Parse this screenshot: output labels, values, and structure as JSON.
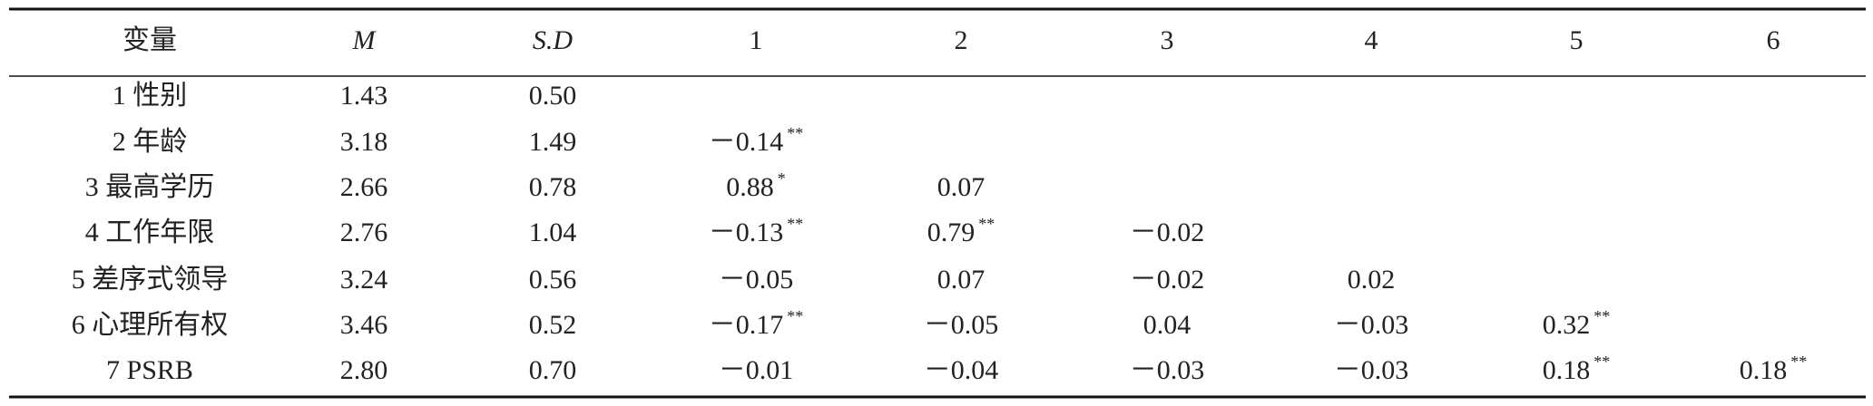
{
  "table": {
    "header": [
      "变量",
      "M",
      "S.D",
      "1",
      "2",
      "3",
      "4",
      "5",
      "6"
    ],
    "rows": [
      [
        {
          "text": "1 性别"
        },
        {
          "text": "1.43"
        },
        {
          "text": "0.50"
        }
      ],
      [
        {
          "text": "2 年龄"
        },
        {
          "text": "3.18"
        },
        {
          "text": "1.49"
        },
        {
          "text": "－0.14",
          "sup": "**"
        }
      ],
      [
        {
          "text": "3 最高学历"
        },
        {
          "text": "2.66"
        },
        {
          "text": "0.78"
        },
        {
          "text": "0.88",
          "sup": "*"
        },
        {
          "text": "0.07"
        }
      ],
      [
        {
          "text": "4 工作年限"
        },
        {
          "text": "2.76"
        },
        {
          "text": "1.04"
        },
        {
          "text": "－0.13",
          "sup": "**"
        },
        {
          "text": "0.79",
          "sup": "**"
        },
        {
          "text": "－0.02"
        }
      ],
      [
        {
          "text": "5 差序式领导"
        },
        {
          "text": "3.24"
        },
        {
          "text": "0.56"
        },
        {
          "text": "－0.05"
        },
        {
          "text": "0.07"
        },
        {
          "text": "－0.02"
        },
        {
          "text": "0.02"
        }
      ],
      [
        {
          "text": "6 心理所有权"
        },
        {
          "text": "3.46"
        },
        {
          "text": "0.52"
        },
        {
          "text": "－0.17",
          "sup": "**"
        },
        {
          "text": "－0.05"
        },
        {
          "text": "0.04"
        },
        {
          "text": "－0.03"
        },
        {
          "text": "0.32",
          "sup": "**"
        }
      ],
      [
        {
          "text": "7 PSRB"
        },
        {
          "text": "2.80"
        },
        {
          "text": "0.70"
        },
        {
          "text": "－0.01"
        },
        {
          "text": "－0.04"
        },
        {
          "text": "－0.03"
        },
        {
          "text": "－0.03"
        },
        {
          "text": "0.18",
          "sup": "**"
        },
        {
          "text": "0.18",
          "sup": "**"
        }
      ]
    ]
  }
}
